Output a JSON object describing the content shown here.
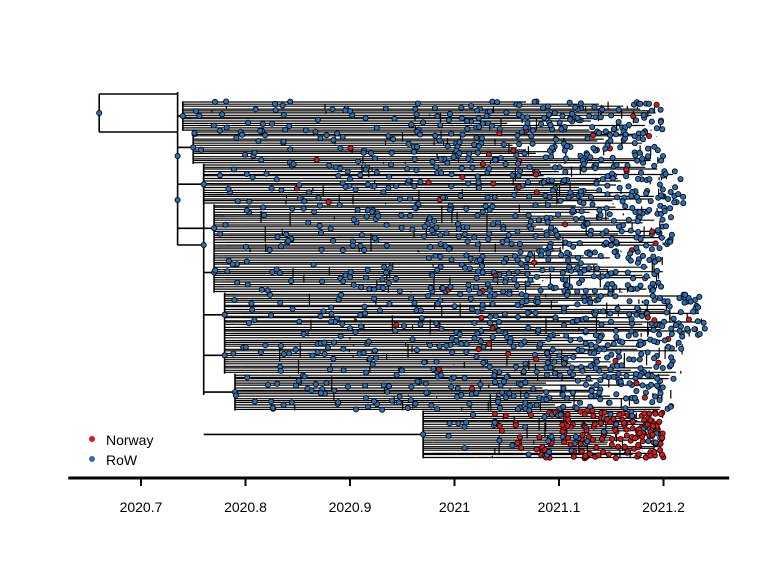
{
  "chart_data": {
    "type": "phylogenetic-tree",
    "title": "",
    "xlabel": "",
    "ylabel": "",
    "x_axis": {
      "ticks": [
        2020.7,
        2020.8,
        2020.9,
        2021.0,
        2021.1,
        2021.2
      ],
      "tick_labels": [
        "2020.7",
        "2020.8",
        "2020.9",
        "2021",
        "2021.1",
        "2021.2"
      ],
      "range": [
        2020.64,
        2021.26
      ]
    },
    "root_date": 2020.66,
    "latest_tip_date": 2021.24,
    "legend": {
      "placement": "bottom-left",
      "entries": [
        {
          "label": "Norway",
          "color": "#d7191c"
        },
        {
          "label": "RoW",
          "color": "#2c6fb3"
        }
      ]
    },
    "clades": [
      {
        "name": "",
        "trait": "RoW",
        "branch_date": 2020.74,
        "start_date": 2020.76,
        "end_date": 2021.2,
        "tips_from": 0.02,
        "tips_to": 0.1,
        "norway_share": 0.02
      },
      {
        "name": "",
        "trait": "RoW",
        "branch_date": 2020.75,
        "start_date": 2020.78,
        "end_date": 2021.2,
        "tips_from": 0.1,
        "tips_to": 0.19,
        "norway_share": 0.06
      },
      {
        "name": "",
        "trait": "RoW",
        "branch_date": 2020.76,
        "start_date": 2020.79,
        "end_date": 2021.22,
        "tips_from": 0.19,
        "tips_to": 0.3,
        "norway_share": 0.05
      },
      {
        "name": "",
        "trait": "RoW",
        "branch_date": 2020.77,
        "start_date": 2020.8,
        "end_date": 2021.21,
        "tips_from": 0.3,
        "tips_to": 0.43,
        "norway_share": 0.02
      },
      {
        "name": "",
        "trait": "RoW",
        "branch_date": 2020.77,
        "start_date": 2020.78,
        "end_date": 2021.2,
        "tips_from": 0.43,
        "tips_to": 0.54,
        "norway_share": 0.01
      },
      {
        "name": "",
        "trait": "RoW",
        "branch_date": 2020.78,
        "start_date": 2020.8,
        "end_date": 2021.24,
        "tips_from": 0.54,
        "tips_to": 0.66,
        "norway_share": 0.04
      },
      {
        "name": "",
        "trait": "RoW",
        "branch_date": 2020.78,
        "start_date": 2020.82,
        "end_date": 2021.22,
        "tips_from": 0.66,
        "tips_to": 0.76,
        "norway_share": 0.03
      },
      {
        "name": "",
        "trait": "RoW",
        "branch_date": 2020.79,
        "start_date": 2020.81,
        "end_date": 2021.21,
        "tips_from": 0.76,
        "tips_to": 0.86,
        "norway_share": 0.01
      },
      {
        "name": "",
        "trait": "Norway",
        "branch_date": 2020.97,
        "start_date": 2021.03,
        "end_date": 2021.2,
        "tips_from": 0.86,
        "tips_to": 0.99,
        "norway_share": 0.82
      }
    ]
  }
}
